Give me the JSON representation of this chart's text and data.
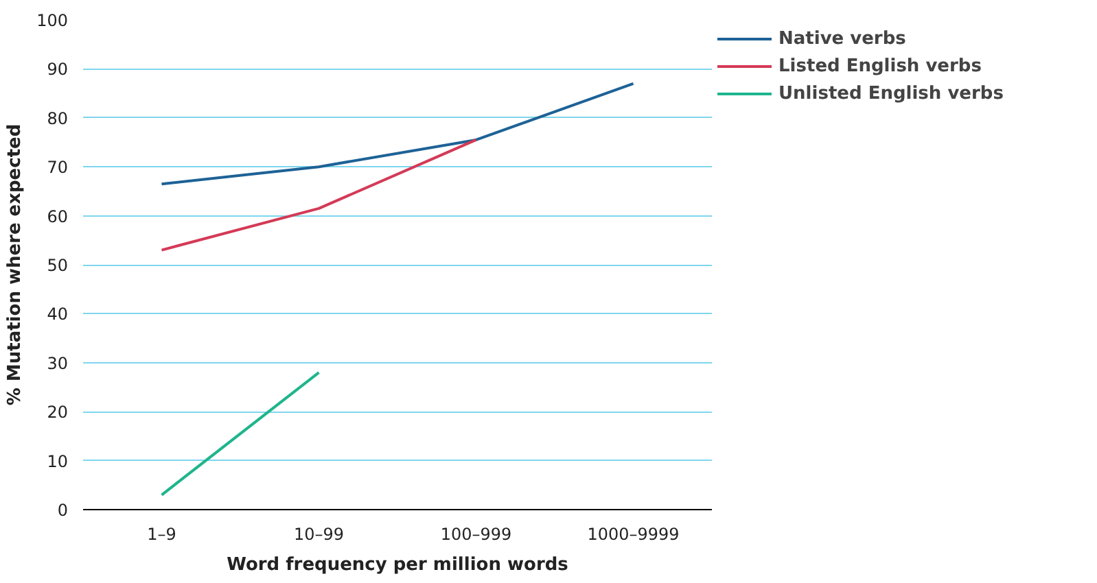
{
  "chart_data": {
    "type": "line",
    "xlabel": "Word frequency per million words",
    "ylabel": "% Mutation where expected",
    "categories": [
      "1–9",
      "10–99",
      "100–999",
      "1000–9999"
    ],
    "series": [
      {
        "name": "Native verbs",
        "color": "#1d6296",
        "values": [
          66.5,
          70,
          75.5,
          87
        ]
      },
      {
        "name": "Listed English verbs",
        "color": "#d43a56",
        "values": [
          53,
          61.5,
          75.5,
          null
        ]
      },
      {
        "name": "Unlisted English verbs",
        "color": "#1fb58c",
        "values": [
          3,
          28,
          null,
          null
        ]
      }
    ],
    "ylim": [
      0,
      100
    ],
    "yticks": [
      0,
      10,
      20,
      30,
      40,
      50,
      60,
      70,
      80,
      90,
      100
    ],
    "grid": "y",
    "legend": "top right",
    "marker": "none",
    "line_style": "solid"
  }
}
